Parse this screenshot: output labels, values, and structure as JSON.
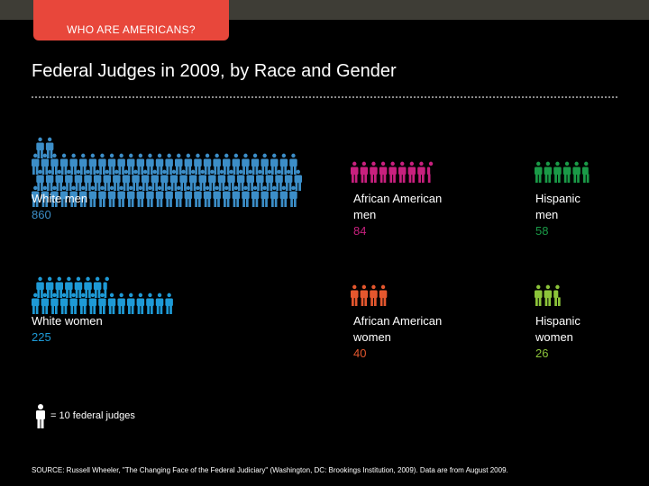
{
  "header": {
    "tab_label": "WHO ARE AMERICANS?"
  },
  "title": "Federal Judges in 2009, by Race and Gender",
  "chart_data": {
    "type": "pictograph",
    "unit_value": 10,
    "legend_text": "= 10 federal judges",
    "series": [
      {
        "name": "White men",
        "value": 860,
        "color": "#3c8ec8"
      },
      {
        "name": "African American men",
        "value": 84,
        "color": "#c8207e"
      },
      {
        "name": "Hispanic men",
        "value": 58,
        "color": "#1a9a47"
      },
      {
        "name": "White women",
        "value": 225,
        "color": "#1e9ad6"
      },
      {
        "name": "African American women",
        "value": 40,
        "color": "#e4572e"
      },
      {
        "name": "Hispanic women",
        "value": 26,
        "color": "#8cc43a"
      }
    ]
  },
  "labels": {
    "white_men": {
      "line1": "White men",
      "line2": "",
      "value": "860"
    },
    "aa_men": {
      "line1": "African American",
      "line2": "men",
      "value": "84"
    },
    "hisp_men": {
      "line1": "Hispanic",
      "line2": "men",
      "value": "58"
    },
    "white_women": {
      "line1": "White women",
      "line2": "",
      "value": "225"
    },
    "aa_women": {
      "line1": "African American",
      "line2": "women",
      "value": "40"
    },
    "hisp_women": {
      "line1": "Hispanic",
      "line2": "women",
      "value": "26"
    }
  },
  "legend": {
    "text": "= 10 federal judges",
    "color": "#ffffff"
  },
  "source": "SOURCE: Russell Wheeler, \"The Changing Face of the Federal Judiciary\" (Washington, DC: Brookings Institution, 2009). Data are from August 2009."
}
